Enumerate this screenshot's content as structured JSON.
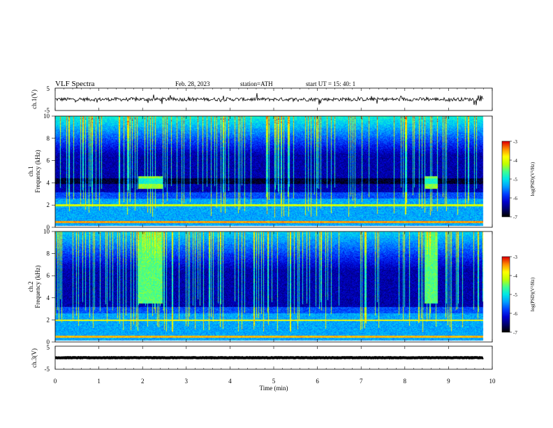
{
  "header": {
    "title": "VLF  Spectra",
    "date": "Feb. 28, 2023",
    "station": "station=ATH",
    "start_ut": "start  UT  =    15: 40: 1"
  },
  "colors": {
    "spectrogram_palette": [
      "#000000",
      "#000070",
      "#0000d0",
      "#0040ff",
      "#00a0ff",
      "#00e8e8",
      "#40ff90",
      "#c0ff00",
      "#ffff00",
      "#ff9000",
      "#e00000",
      "#ffffff"
    ],
    "trace": "#000000"
  },
  "chart_data": [
    {
      "type": "line",
      "panel": "ch1-waveform",
      "ylabel": "ch.1(V)",
      "ylim": [
        -5,
        5
      ],
      "y_ticks": [
        "5",
        "-5"
      ],
      "xlim": [
        0,
        10
      ],
      "description_values": {
        "baseline_v": 0,
        "noise_amplitude_v": 0.8
      }
    },
    {
      "type": "heatmap",
      "panel": "ch1-spectrogram",
      "channel_label": "ch.1",
      "ylabel": "Frequency  (kHz)",
      "ylim": [
        0,
        10
      ],
      "y_ticks": [
        "0",
        "2",
        "4",
        "6",
        "8",
        "10"
      ],
      "xlim": [
        0,
        10
      ],
      "data_end_min": 9.8,
      "colorbar": {
        "label": "log(PSD)(V²/Hz)",
        "range": [
          -7,
          -3
        ],
        "ticks": [
          "-3",
          "-4",
          "-5",
          "-6",
          "-7"
        ]
      },
      "features": [
        {
          "kind": "burst",
          "t_start_min": 1.9,
          "t_end_min": 2.45,
          "f_low_khz": 3.5,
          "f_high_khz": 4.6,
          "log_psd": -4.6
        },
        {
          "kind": "burst",
          "t_start_min": 8.45,
          "t_end_min": 8.75,
          "f_low_khz": 3.5,
          "f_high_khz": 4.6,
          "log_psd": -4.6
        },
        {
          "kind": "line",
          "f_khz": 2.0,
          "log_psd": -4.2
        },
        {
          "kind": "line",
          "f_khz": 0.5,
          "log_psd": -3.6
        }
      ]
    },
    {
      "type": "heatmap",
      "panel": "ch2-spectrogram",
      "channel_label": "ch.2",
      "ylabel": "Frequency  (kHz)",
      "ylim": [
        0,
        10
      ],
      "y_ticks": [
        "0",
        "2",
        "4",
        "6",
        "8",
        "10"
      ],
      "xlim": [
        0,
        10
      ],
      "data_end_min": 9.8,
      "colorbar": {
        "label": "log(PSD)(V²/Hz)",
        "range": [
          -7,
          -3
        ],
        "ticks": [
          "-3",
          "-4",
          "-5",
          "-6",
          "-7"
        ]
      },
      "features": [
        {
          "kind": "burst",
          "t_start_min": 1.9,
          "t_end_min": 2.45,
          "f_low_khz": 3.5,
          "f_high_khz": 10,
          "log_psd": -4.8
        },
        {
          "kind": "burst",
          "t_start_min": 8.45,
          "t_end_min": 8.75,
          "f_low_khz": 3.5,
          "f_high_khz": 10,
          "log_psd": -4.8
        },
        {
          "kind": "line",
          "f_khz": 2.0,
          "log_psd": -4.0
        },
        {
          "kind": "line",
          "f_khz": 0.5,
          "log_psd": -3.7
        }
      ]
    },
    {
      "type": "line",
      "panel": "ch3-waveform",
      "ylabel": "ch.3(V)",
      "ylim": [
        -5,
        5
      ],
      "y_ticks": [
        "5",
        "-5"
      ],
      "xlim": [
        0,
        10
      ],
      "description_values": {
        "baseline_v": 0,
        "noise_amplitude_v": 0.1
      }
    }
  ],
  "x_axis": {
    "label": "Time  (min)",
    "ticks": [
      "0",
      "1",
      "2",
      "3",
      "4",
      "5",
      "6",
      "7",
      "8",
      "9",
      "10"
    ]
  }
}
